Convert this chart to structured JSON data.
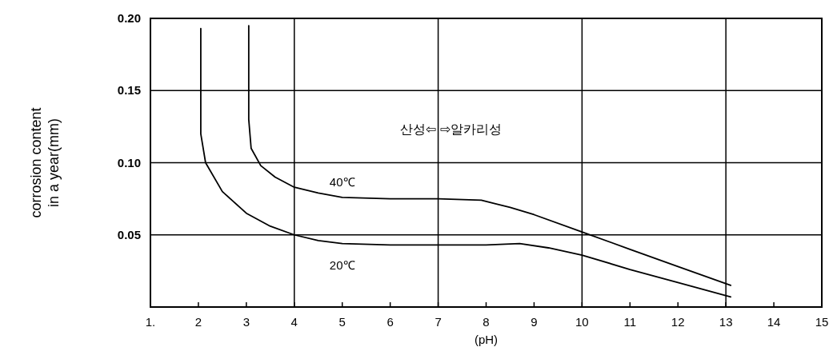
{
  "chart_data": {
    "type": "line",
    "xlabel": "(pH)",
    "ylabel": "corrosion content\nin a year(mm)",
    "xlim": [
      1,
      15
    ],
    "ylim": [
      0,
      0.2
    ],
    "xticks": [
      {
        "value": 1,
        "label": "1."
      },
      2,
      3,
      4,
      5,
      6,
      7,
      8,
      9,
      10,
      11,
      12,
      13,
      14,
      15
    ],
    "yticks": [
      {
        "value": 0.05,
        "label": "0.05"
      },
      {
        "value": 0.1,
        "label": "0.10"
      },
      {
        "value": 0.15,
        "label": "0.15"
      },
      {
        "value": 0.2,
        "label": "0.20"
      }
    ],
    "grid": "y",
    "marker": "none",
    "line_style": "solid",
    "ref_lines": [
      {
        "axis": "x",
        "value": 4,
        "color": "#000000"
      },
      {
        "axis": "x",
        "value": 7,
        "color": "#000000"
      },
      {
        "axis": "x",
        "value": 10,
        "color": "#000000"
      },
      {
        "axis": "x",
        "value": 13,
        "color": "#000000"
      }
    ],
    "annotations": [
      {
        "text": "산성⇦ ⇨알카리성",
        "x": 7,
        "y": 0.12
      }
    ],
    "series": [
      {
        "name": "40℃",
        "color": "#000000",
        "x": [
          3.05,
          3.05,
          3.1,
          3.3,
          3.6,
          4,
          4.5,
          5,
          6,
          7,
          7.9,
          8.5,
          9,
          10,
          11,
          12,
          13.1
        ],
        "values": [
          0.195,
          0.13,
          0.11,
          0.098,
          0.09,
          0.083,
          0.079,
          0.076,
          0.075,
          0.075,
          0.074,
          0.069,
          0.064,
          0.052,
          0.04,
          0.028,
          0.015
        ]
      },
      {
        "name": "20℃",
        "color": "#000000",
        "x": [
          2.05,
          2.05,
          2.15,
          2.5,
          3,
          3.5,
          4,
          4.5,
          5,
          6,
          7,
          8,
          8.7,
          9.3,
          10,
          11,
          12,
          13.1
        ],
        "values": [
          0.193,
          0.12,
          0.1,
          0.08,
          0.065,
          0.056,
          0.05,
          0.046,
          0.044,
          0.043,
          0.043,
          0.043,
          0.044,
          0.041,
          0.036,
          0.026,
          0.017,
          0.007
        ]
      }
    ]
  }
}
